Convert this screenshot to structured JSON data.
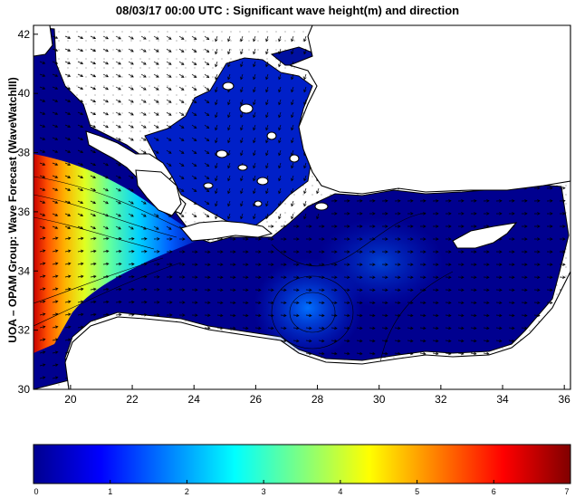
{
  "title": "08/03/17 00:00 UTC : Significant wave height(m) and direction",
  "ylabel": "UOA – OPAM Group: Wave Forecast (WaveWatchIII)",
  "map": {
    "lon_range": [
      18.8,
      36.2
    ],
    "lat_range": [
      30,
      42.3
    ],
    "x_ticks": [
      "20",
      "22",
      "24",
      "26",
      "28",
      "30",
      "32",
      "34",
      "36"
    ],
    "y_ticks": [
      "30",
      "32",
      "34",
      "36",
      "38",
      "40",
      "42"
    ],
    "land_color": "#ffffff",
    "low_wave_color": "#00008f"
  },
  "colorbar": {
    "range": [
      0,
      7
    ],
    "ticks": [
      "0",
      "1",
      "2",
      "3",
      "4",
      "5",
      "6",
      "7"
    ],
    "colormap": "jet"
  },
  "wave_maxima": [
    {
      "lon": 19.2,
      "lat": 35.1,
      "hs": 6.4
    },
    {
      "lon": 20.5,
      "lat": 34.6,
      "hs": 5.2
    },
    {
      "lon": 22.5,
      "lat": 34.4,
      "hs": 3.6
    },
    {
      "lon": 24.0,
      "lat": 34.1,
      "hs": 2.4
    }
  ]
}
